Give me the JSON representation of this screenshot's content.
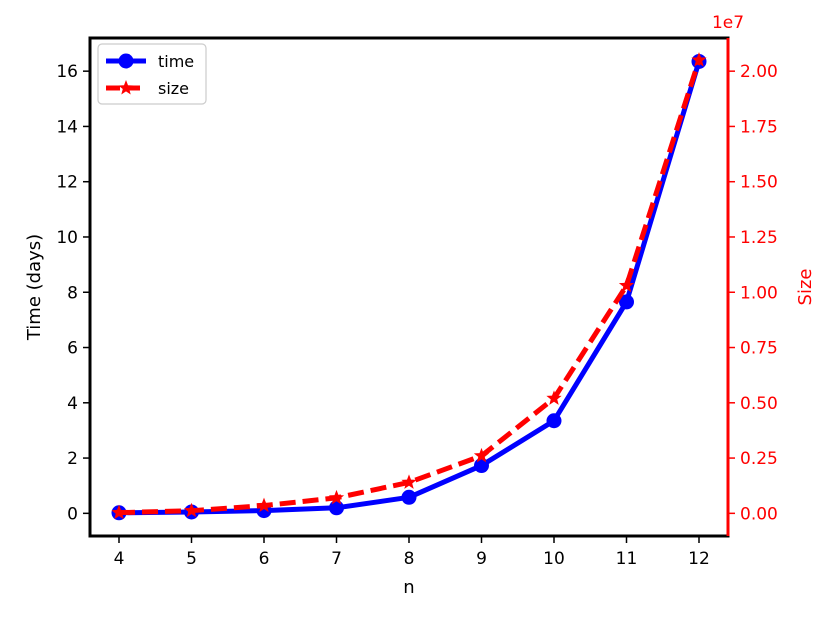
{
  "chart_data": {
    "type": "line",
    "title": "",
    "xlabel": "n",
    "ylabel": "Time (days)",
    "y2label": "Size",
    "y2_offset_label": "1e7",
    "x": [
      4,
      5,
      6,
      7,
      8,
      9,
      10,
      11,
      12
    ],
    "xlim": [
      3.6,
      12.4
    ],
    "ylim": [
      -0.82,
      17.2
    ],
    "y2lim": [
      -0.1025,
      2.15
    ],
    "xticks": [
      "4",
      "5",
      "6",
      "7",
      "8",
      "9",
      "10",
      "11",
      "12"
    ],
    "yticks": [
      "0",
      "2",
      "4",
      "6",
      "8",
      "10",
      "12",
      "14",
      "16"
    ],
    "y2ticks": [
      "0.00",
      "0.25",
      "0.50",
      "0.75",
      "1.00",
      "1.25",
      "1.50",
      "1.75",
      "2.00"
    ],
    "grid": false,
    "legend_position": "top-left",
    "series": [
      {
        "name": "time",
        "axis": "left",
        "color": "#0000ff",
        "linestyle": "solid",
        "marker": "circle",
        "values": [
          0.02,
          0.05,
          0.1,
          0.2,
          0.58,
          1.73,
          3.35,
          7.65,
          16.35
        ]
      },
      {
        "name": "size",
        "axis": "right",
        "color": "#ff0000",
        "linestyle": "dashed",
        "marker": "star",
        "values": [
          0.003,
          0.012,
          0.035,
          0.07,
          0.14,
          0.26,
          0.52,
          1.03,
          2.05
        ]
      }
    ]
  }
}
